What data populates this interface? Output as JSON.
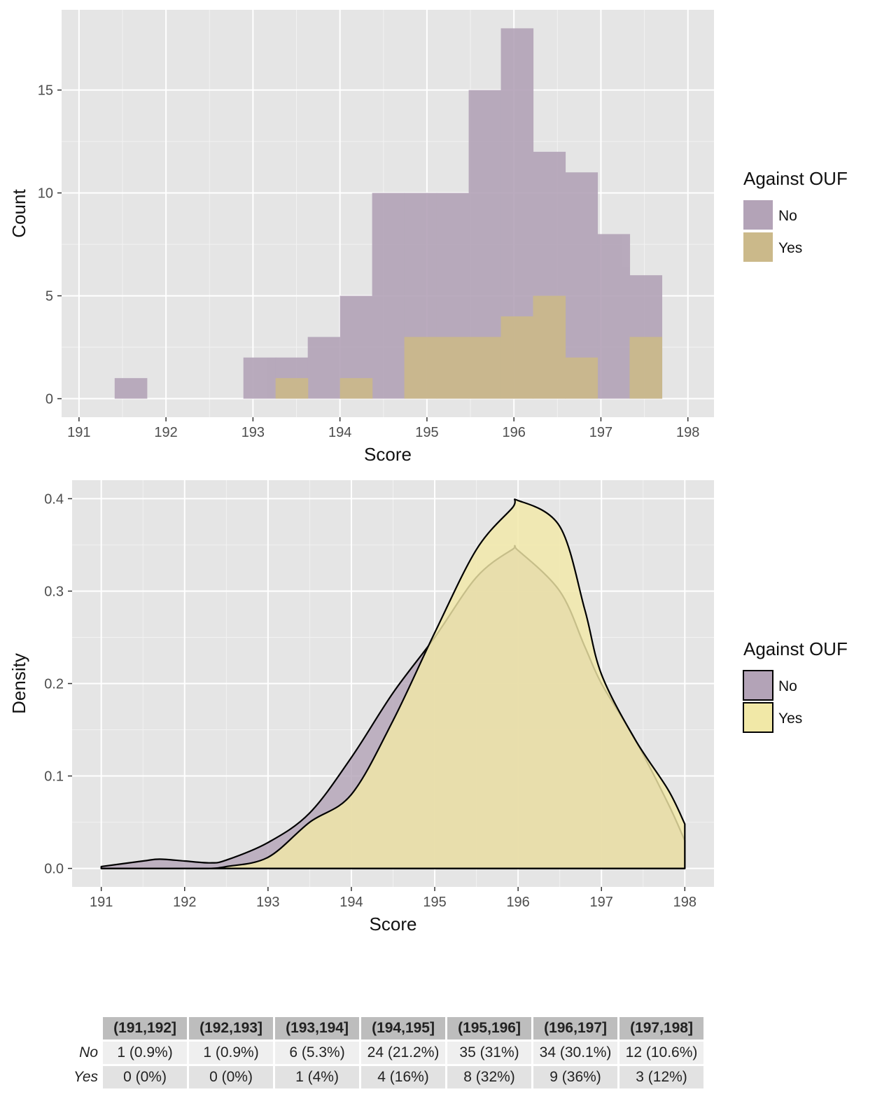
{
  "chart_data": [
    {
      "type": "histogram",
      "xlabel": "Score",
      "ylabel": "Count",
      "xlim": [
        190.8,
        198.3
      ],
      "ylim": [
        -0.9,
        18.9
      ],
      "xticks": [
        191,
        192,
        193,
        194,
        195,
        196,
        197,
        198
      ],
      "yticks": [
        0,
        5,
        10,
        15
      ],
      "xtick_labels": [
        "191",
        "192",
        "193",
        "194",
        "195",
        "196",
        "197",
        "198"
      ],
      "ytick_labels": [
        "0",
        "5",
        "10",
        "15"
      ],
      "grid": true,
      "legend": {
        "title": "Against OUF",
        "position": "right",
        "entries": [
          "No",
          "Yes"
        ]
      },
      "bin_starts": [
        191.41,
        191.78,
        192.15,
        192.52,
        192.89,
        193.26,
        193.63,
        194.0,
        194.37,
        194.74,
        195.11,
        195.48,
        195.85,
        196.22,
        196.59,
        196.96,
        197.33
      ],
      "bin_width": 0.37,
      "series": [
        {
          "name": "No",
          "color": "#b3a3b7",
          "values": [
            1,
            0,
            0,
            0,
            2,
            2,
            3,
            5,
            10,
            10,
            10,
            15,
            18,
            12,
            11,
            8,
            6
          ]
        },
        {
          "name": "Yes",
          "color": "#cbb98a",
          "values": [
            0,
            0,
            0,
            0,
            0,
            1,
            0,
            1,
            0,
            3,
            3,
            3,
            4,
            5,
            2,
            0,
            3
          ]
        }
      ]
    },
    {
      "type": "area",
      "xlabel": "Score",
      "ylabel": "Density",
      "xlim": [
        190.65,
        198.35
      ],
      "ylim": [
        -0.02,
        0.42
      ],
      "xticks": [
        191,
        192,
        193,
        194,
        195,
        196,
        197,
        198
      ],
      "yticks": [
        0.0,
        0.1,
        0.2,
        0.3,
        0.4
      ],
      "xtick_labels": [
        "191",
        "192",
        "193",
        "194",
        "195",
        "196",
        "197",
        "198"
      ],
      "ytick_labels": [
        "0.0",
        "0.1",
        "0.2",
        "0.3",
        "0.4"
      ],
      "grid": true,
      "legend": {
        "title": "Against OUF",
        "position": "right",
        "entries": [
          "No",
          "Yes"
        ]
      },
      "x": [
        191.0,
        191.5,
        191.7,
        192.0,
        192.3,
        192.5,
        193.0,
        193.5,
        194.0,
        194.5,
        195.0,
        195.5,
        195.93,
        196.0,
        196.5,
        196.8,
        197.0,
        197.4,
        197.8,
        198.0
      ],
      "series": [
        {
          "name": "No",
          "fill": "#b3a3b7",
          "values": [
            0.002,
            0.008,
            0.01,
            0.008,
            0.006,
            0.009,
            0.028,
            0.06,
            0.12,
            0.19,
            0.25,
            0.315,
            0.345,
            0.344,
            0.3,
            0.24,
            0.2,
            0.14,
            0.07,
            0.03
          ]
        },
        {
          "name": "Yes",
          "fill": "#f1e8a7",
          "values": [
            0.0,
            0.0,
            0.0,
            0.0,
            0.0,
            0.002,
            0.012,
            0.05,
            0.08,
            0.16,
            0.255,
            0.345,
            0.39,
            0.398,
            0.37,
            0.28,
            0.21,
            0.14,
            0.085,
            0.048
          ]
        }
      ]
    },
    {
      "type": "table",
      "columns": [
        "(191,192]",
        "(192,193]",
        "(193,194]",
        "(194,195]",
        "(195,196]",
        "(196,197]",
        "(197,198]"
      ],
      "rows": [
        {
          "label": "No",
          "cells": [
            "1 (0.9%)",
            "1 (0.9%)",
            "6 (5.3%)",
            "24 (21.2%)",
            "35 (31%)",
            "34 (30.1%)",
            "12 (10.6%)"
          ]
        },
        {
          "label": "Yes",
          "cells": [
            "0 (0%)",
            "0 (0%)",
            "1 (4%)",
            "4 (16%)",
            "8 (32%)",
            "9 (36%)",
            "3 (12%)"
          ]
        }
      ]
    }
  ]
}
